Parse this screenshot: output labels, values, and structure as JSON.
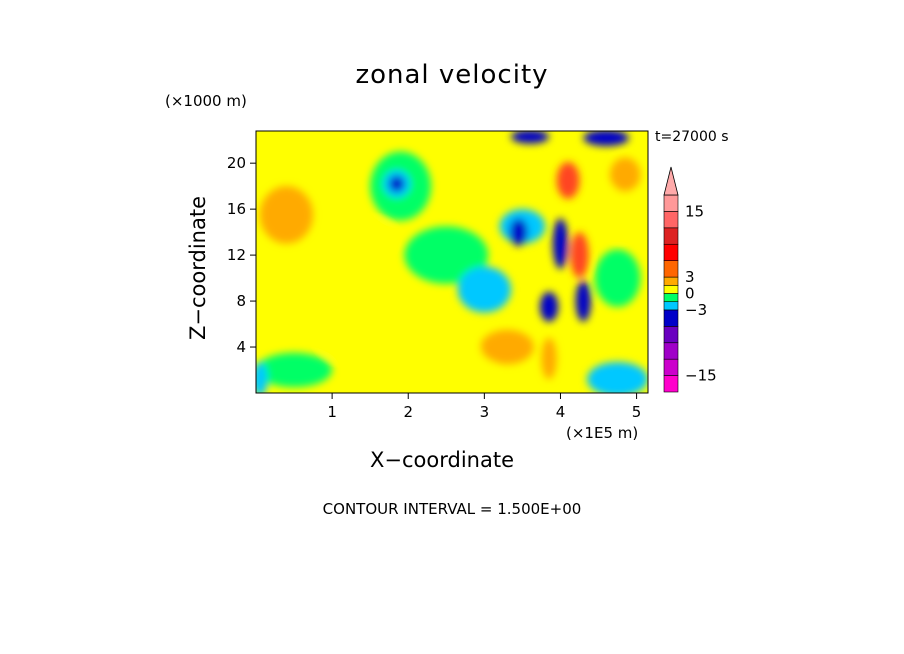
{
  "chart_data": {
    "type": "heatmap",
    "title": "zonal velocity",
    "xlabel": "X−coordinate",
    "ylabel": "Z−coordinate",
    "x_scale_label": "(×1E5 m)",
    "z_scale_label": "(×1000 m)",
    "time_label": "t=27000 s",
    "contour_interval_label": "CONTOUR INTERVAL = 1.500E+00",
    "xlim": [
      0,
      5.15
    ],
    "ylim": [
      0,
      22.8
    ],
    "x_ticks": [
      1,
      2,
      3,
      4,
      5
    ],
    "x_tick_labels": [
      "1",
      "2",
      "3",
      "4",
      "5"
    ],
    "y_ticks": [
      4,
      8,
      12,
      16,
      20
    ],
    "y_tick_labels": [
      "4",
      "8",
      "12",
      "16",
      "20"
    ],
    "colorbar": {
      "levels": [
        -18,
        -16.5,
        -15,
        -13.5,
        -12,
        -10.5,
        -9,
        -7.5,
        -6,
        -4.5,
        -3,
        -1.5,
        0,
        1.5,
        3,
        4.5,
        6,
        7.5,
        9,
        10.5,
        12,
        13.5,
        15,
        16.5,
        18
      ],
      "bands": [
        {
          "from": -18,
          "to": -15,
          "color": "#ff00cc"
        },
        {
          "from": -15,
          "to": -12,
          "color": "#cc00cc"
        },
        {
          "from": -12,
          "to": -9,
          "color": "#a000c8"
        },
        {
          "from": -9,
          "to": -6,
          "color": "#6a00c0"
        },
        {
          "from": -6,
          "to": -3,
          "color": "#0000c8"
        },
        {
          "from": -3,
          "to": -1.5,
          "color": "#00c8ff"
        },
        {
          "from": -1.5,
          "to": 0,
          "color": "#00ff66"
        },
        {
          "from": 0,
          "to": 1.5,
          "color": "#ffff00"
        },
        {
          "from": 1.5,
          "to": 3,
          "color": "#ffaa00"
        },
        {
          "from": 3,
          "to": 6,
          "color": "#ff6600"
        },
        {
          "from": 6,
          "to": 9,
          "color": "#ff0000"
        },
        {
          "from": 9,
          "to": 12,
          "color": "#dd2222"
        },
        {
          "from": 12,
          "to": 15,
          "color": "#ff6666"
        },
        {
          "from": 15,
          "to": 18,
          "color": "#ff9999"
        }
      ],
      "over_color": "#ffaaaa",
      "tick_values": [
        15,
        3,
        0,
        -3,
        -15
      ],
      "tick_labels": [
        "15",
        "3",
        "0",
        "−3",
        "−15"
      ]
    },
    "field_regions": [
      {
        "x": 0.5,
        "z": 2,
        "rx": 0.5,
        "rz": 1.5,
        "level": "green"
      },
      {
        "x": 4.75,
        "z": 1.2,
        "rx": 0.4,
        "rz": 1.5,
        "level": "cyan"
      },
      {
        "x": 0.05,
        "z": 1.2,
        "rx": 0.1,
        "rz": 1.5,
        "level": "cyan"
      },
      {
        "x": 1.1,
        "z": 7,
        "rx": 0.35,
        "rz": 4,
        "level": "yellow"
      },
      {
        "x": 2.7,
        "z": 2.5,
        "rx": 0.45,
        "rz": 1.6,
        "level": "yellow"
      },
      {
        "x": 3.3,
        "z": 4,
        "rx": 0.35,
        "rz": 1.5,
        "level": "orange"
      },
      {
        "x": 0.4,
        "z": 15.5,
        "rx": 0.35,
        "rz": 2.5,
        "level": "orange"
      },
      {
        "x": 1.9,
        "z": 18,
        "rx": 0.4,
        "rz": 3,
        "level": "green"
      },
      {
        "x": 1.85,
        "z": 18.2,
        "rx": 0.18,
        "rz": 1.2,
        "level": "cyan"
      },
      {
        "x": 1.85,
        "z": 18.2,
        "rx": 0.1,
        "rz": 0.7,
        "level": "blue"
      },
      {
        "x": 1.55,
        "z": 13.5,
        "rx": 0.25,
        "rz": 1.4,
        "level": "yellow"
      },
      {
        "x": 2.5,
        "z": 12,
        "rx": 0.55,
        "rz": 2.5,
        "level": "green"
      },
      {
        "x": 3.0,
        "z": 9,
        "rx": 0.35,
        "rz": 2,
        "level": "cyan"
      },
      {
        "x": 3.5,
        "z": 14.5,
        "rx": 0.3,
        "rz": 1.5,
        "level": "cyan"
      },
      {
        "x": 3.45,
        "z": 14,
        "rx": 0.12,
        "rz": 1.2,
        "level": "blue"
      },
      {
        "x": 3.85,
        "z": 7.5,
        "rx": 0.12,
        "rz": 1.3,
        "level": "blue"
      },
      {
        "x": 4.0,
        "z": 13,
        "rx": 0.1,
        "rz": 2.2,
        "level": "blue"
      },
      {
        "x": 4.3,
        "z": 8,
        "rx": 0.1,
        "rz": 1.8,
        "level": "blue"
      },
      {
        "x": 4.25,
        "z": 12,
        "rx": 0.12,
        "rz": 2,
        "level": "red"
      },
      {
        "x": 4.1,
        "z": 18.5,
        "rx": 0.15,
        "rz": 1.6,
        "level": "red"
      },
      {
        "x": 3.85,
        "z": 3,
        "rx": 0.1,
        "rz": 1.8,
        "level": "orange"
      },
      {
        "x": 3.6,
        "z": 22.3,
        "rx": 0.25,
        "rz": 0.6,
        "level": "blue"
      },
      {
        "x": 4.6,
        "z": 22.2,
        "rx": 0.3,
        "rz": 0.7,
        "level": "blue"
      },
      {
        "x": 4.8,
        "z": 16,
        "rx": 0.25,
        "rz": 2.5,
        "level": "yellow"
      },
      {
        "x": 4.75,
        "z": 10,
        "rx": 0.3,
        "rz": 2.5,
        "level": "green"
      },
      {
        "x": 4.85,
        "z": 19,
        "rx": 0.2,
        "rz": 1.5,
        "level": "orange"
      }
    ]
  }
}
